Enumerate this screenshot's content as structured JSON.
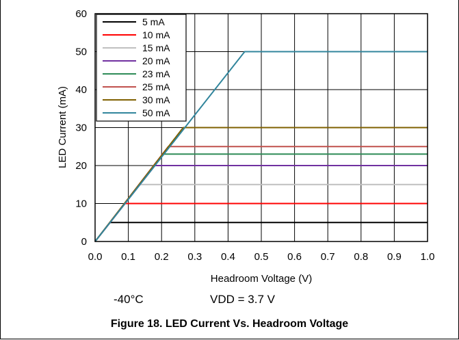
{
  "chart_data": {
    "type": "line",
    "xlabel": "Headroom Voltage (V)",
    "ylabel": "LED Current (mA)",
    "xlim": [
      0.0,
      1.0
    ],
    "ylim": [
      0,
      60
    ],
    "x_ticks": [
      "0.0",
      "0.1",
      "0.2",
      "0.3",
      "0.4",
      "0.5",
      "0.6",
      "0.7",
      "0.8",
      "0.9",
      "1.0"
    ],
    "y_ticks": [
      "0",
      "10",
      "20",
      "30",
      "40",
      "50",
      "60"
    ],
    "grid": true,
    "legend_position": "top-left",
    "series": [
      {
        "name": "5 mA",
        "color": "#000000",
        "points": [
          [
            0.0,
            0
          ],
          [
            0.045,
            5
          ],
          [
            1.0,
            5
          ]
        ]
      },
      {
        "name": "10 mA",
        "color": "#ff0000",
        "points": [
          [
            0.0,
            0
          ],
          [
            0.09,
            10
          ],
          [
            1.0,
            10
          ]
        ]
      },
      {
        "name": "15 mA",
        "color": "#bfbfbf",
        "points": [
          [
            0.0,
            0
          ],
          [
            0.135,
            15
          ],
          [
            1.0,
            15
          ]
        ]
      },
      {
        "name": "20 mA",
        "color": "#7030a0",
        "points": [
          [
            0.0,
            0
          ],
          [
            0.18,
            20
          ],
          [
            1.0,
            20
          ]
        ]
      },
      {
        "name": "23 mA",
        "color": "#2e8b57",
        "points": [
          [
            0.0,
            0
          ],
          [
            0.205,
            23
          ],
          [
            1.0,
            23
          ]
        ]
      },
      {
        "name": "25 mA",
        "color": "#c0504d",
        "points": [
          [
            0.0,
            0
          ],
          [
            0.22,
            25
          ],
          [
            1.0,
            25
          ]
        ]
      },
      {
        "name": "30 mA",
        "color": "#7f6000",
        "points": [
          [
            0.0,
            0
          ],
          [
            0.265,
            30
          ],
          [
            1.0,
            30
          ]
        ]
      },
      {
        "name": "50 mA",
        "color": "#31859c",
        "points": [
          [
            0.0,
            0
          ],
          [
            0.45,
            50
          ],
          [
            1.0,
            50
          ]
        ]
      }
    ]
  },
  "notes": {
    "temperature": "-40°C",
    "vdd": "VDD = 3.7 V"
  },
  "caption": "Figure 18. LED Current Vs. Headroom Voltage"
}
